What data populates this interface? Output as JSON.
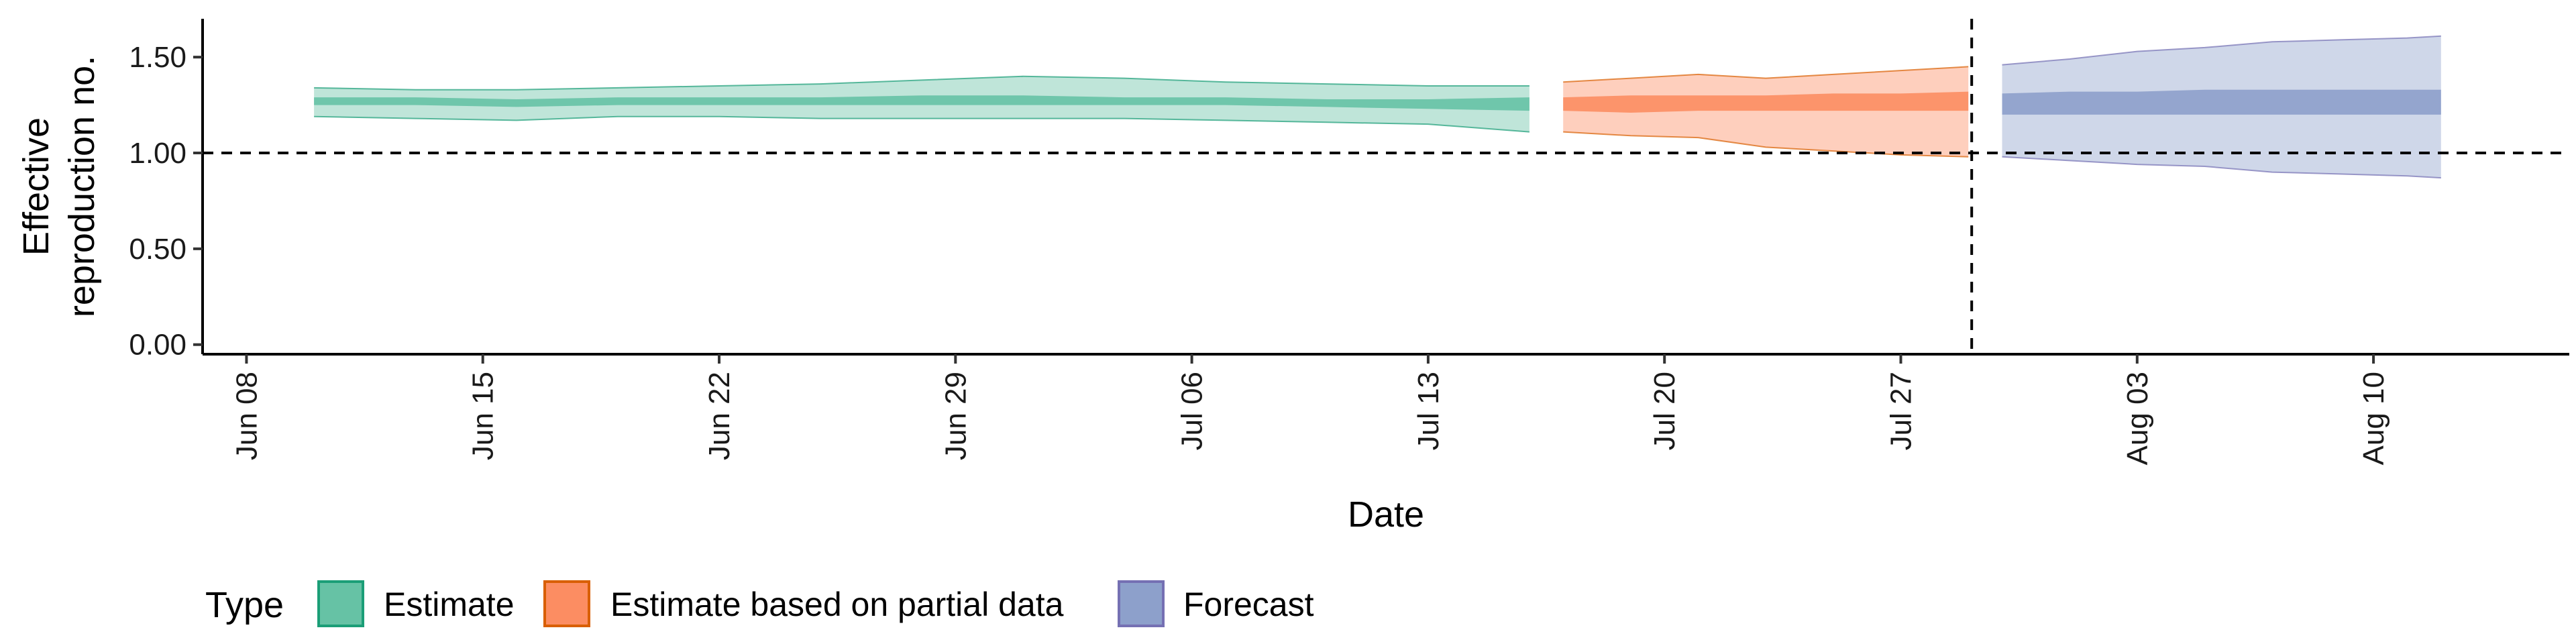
{
  "chart_data": {
    "type": "area",
    "xlabel": "Date",
    "ylabel_lines": [
      "Effective",
      "reproduction no."
    ],
    "ylim": [
      -0.05,
      1.7
    ],
    "y_ticks": [
      0.0,
      0.5,
      1.0,
      1.5
    ],
    "y_tick_labels": [
      "0.00",
      "0.50",
      "1.00",
      "1.50"
    ],
    "x_tick_labels": [
      "Jun 08",
      "Jun 15",
      "Jun 22",
      "Jun 29",
      "Jul 06",
      "Jul 13",
      "Jul 20",
      "Jul 27",
      "Aug 03",
      "Aug 10"
    ],
    "x_tick_days": [
      0,
      7,
      14,
      21,
      28,
      35,
      42,
      49,
      56,
      63
    ],
    "x_range_days": [
      -1.3,
      68.8
    ],
    "reference_hline": 1.0,
    "forecast_date_day": 51.1,
    "x_day_origin": "Jun 08",
    "legend": {
      "title": "Type",
      "position": "bottom-left"
    },
    "series": [
      {
        "name": "Estimate",
        "fill": "#66c2a5",
        "stroke": "#1b9e77",
        "x": [
          2,
          5,
          8,
          11,
          14,
          17,
          20,
          23,
          26,
          29,
          32,
          35,
          38
        ],
        "lower_90": [
          1.19,
          1.18,
          1.17,
          1.19,
          1.19,
          1.18,
          1.18,
          1.18,
          1.18,
          1.17,
          1.16,
          1.15,
          1.11
        ],
        "upper_90": [
          1.34,
          1.33,
          1.33,
          1.34,
          1.35,
          1.36,
          1.38,
          1.4,
          1.39,
          1.37,
          1.36,
          1.35,
          1.35
        ],
        "lower_50": [
          1.25,
          1.25,
          1.24,
          1.25,
          1.25,
          1.25,
          1.25,
          1.25,
          1.25,
          1.25,
          1.24,
          1.23,
          1.22
        ],
        "upper_50": [
          1.29,
          1.29,
          1.28,
          1.29,
          1.29,
          1.29,
          1.3,
          1.3,
          1.29,
          1.29,
          1.28,
          1.28,
          1.29
        ]
      },
      {
        "name": "Estimate based on partial data",
        "fill": "#fc8d62",
        "stroke": "#d95f02",
        "x": [
          39,
          41,
          43,
          45,
          47,
          49,
          51
        ],
        "lower_90": [
          1.11,
          1.09,
          1.08,
          1.03,
          1.01,
          0.99,
          0.98
        ],
        "upper_90": [
          1.37,
          1.39,
          1.41,
          1.39,
          1.41,
          1.43,
          1.45
        ],
        "lower_50": [
          1.22,
          1.21,
          1.22,
          1.22,
          1.22,
          1.22,
          1.22
        ],
        "upper_50": [
          1.29,
          1.3,
          1.3,
          1.3,
          1.31,
          1.31,
          1.32
        ]
      },
      {
        "name": "Forecast",
        "fill": "#8da0cb",
        "stroke": "#7570b3",
        "x": [
          52,
          54,
          56,
          58,
          60,
          62,
          64,
          65
        ],
        "lower_90": [
          0.98,
          0.96,
          0.94,
          0.93,
          0.9,
          0.89,
          0.88,
          0.87
        ],
        "upper_90": [
          1.46,
          1.49,
          1.53,
          1.55,
          1.58,
          1.59,
          1.6,
          1.61
        ],
        "lower_50": [
          1.2,
          1.2,
          1.2,
          1.2,
          1.2,
          1.2,
          1.2,
          1.2
        ],
        "upper_50": [
          1.31,
          1.32,
          1.32,
          1.33,
          1.33,
          1.33,
          1.33,
          1.33
        ]
      }
    ]
  }
}
